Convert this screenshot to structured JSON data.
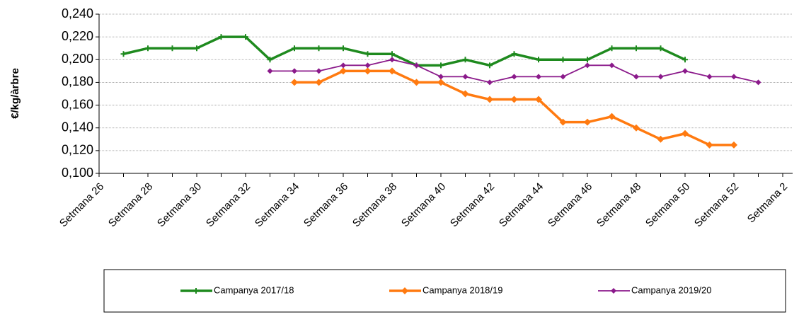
{
  "chart_data": {
    "type": "line",
    "y_label": "€/kg/àrbre",
    "categories": [
      "Setmana 26",
      null,
      "Setmana 28",
      null,
      "Setmana 30",
      null,
      "Setmana 32",
      null,
      "Setmana 34",
      null,
      "Setmana 36",
      null,
      "Setmana 38",
      null,
      "Setmana 40",
      null,
      "Setmana 42",
      null,
      "Setmana 44",
      null,
      "Setmana 46",
      null,
      "Setmana 48",
      null,
      "Setmana 50",
      null,
      "Setmana 52",
      null,
      "Setmana 2"
    ],
    "series": [
      {
        "name": "Campanya 2017/18",
        "color": "#1e8a1e",
        "values": [
          null,
          0.205,
          0.21,
          0.21,
          0.21,
          0.22,
          0.22,
          0.2,
          0.21,
          0.21,
          0.21,
          0.205,
          0.205,
          0.195,
          0.195,
          0.2,
          0.195,
          0.205,
          0.2,
          0.2,
          0.2,
          0.21,
          0.21,
          0.21,
          0.2,
          null,
          null,
          null,
          null
        ]
      },
      {
        "name": "Campanya 2018/19",
        "color": "#ff7a10",
        "values": [
          null,
          null,
          null,
          null,
          null,
          null,
          null,
          null,
          0.18,
          0.18,
          0.19,
          0.19,
          0.19,
          0.18,
          0.18,
          0.17,
          0.165,
          0.165,
          0.165,
          0.145,
          0.145,
          0.15,
          0.14,
          0.13,
          0.135,
          0.125,
          0.125,
          null,
          null
        ]
      },
      {
        "name": "Campanya 2019/20",
        "color": "#8b1a8b",
        "values": [
          null,
          null,
          null,
          null,
          null,
          null,
          null,
          0.19,
          0.19,
          0.19,
          0.195,
          0.195,
          0.2,
          0.195,
          0.185,
          0.185,
          0.18,
          0.185,
          0.185,
          0.185,
          0.195,
          0.195,
          0.185,
          0.185,
          0.19,
          0.185,
          0.185,
          0.18,
          null
        ]
      }
    ],
    "ylim": [
      0.1,
      0.24
    ],
    "yticks": [
      {
        "value": 0.1,
        "label": "0,100"
      },
      {
        "value": 0.12,
        "label": "0,120"
      },
      {
        "value": 0.14,
        "label": "0,140"
      },
      {
        "value": 0.16,
        "label": "0,160"
      },
      {
        "value": 0.18,
        "label": "0,180"
      },
      {
        "value": 0.2,
        "label": "0,200"
      },
      {
        "value": 0.22,
        "label": "0,220"
      },
      {
        "value": 0.24,
        "label": "0,240"
      }
    ],
    "grid": true
  }
}
